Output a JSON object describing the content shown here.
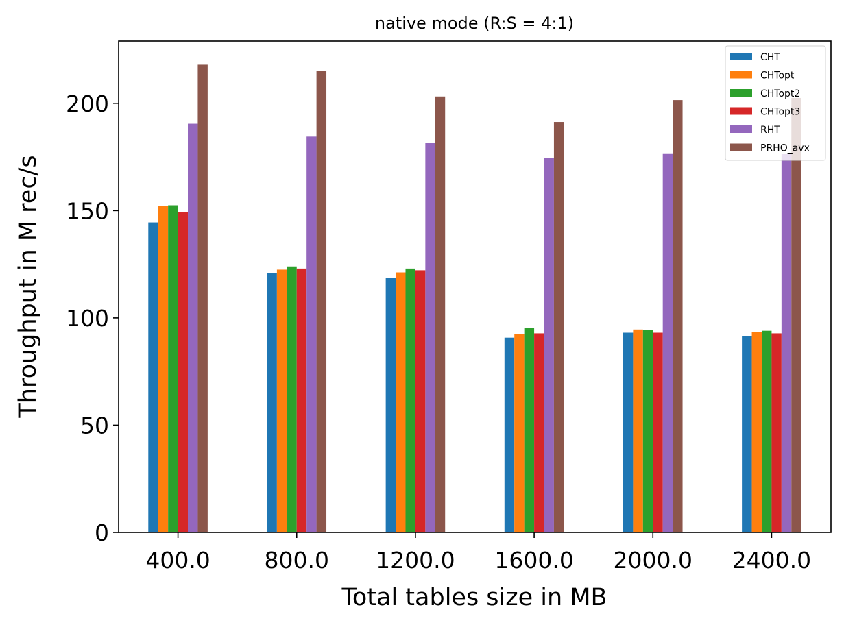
{
  "chart_data": {
    "type": "bar",
    "title": "native mode (R:S = 4:1)",
    "xlabel": "Total tables size in MB",
    "ylabel": "Throughput in M rec/s",
    "categories": [
      "400.0",
      "800.0",
      "1200.0",
      "1600.0",
      "2000.0",
      "2400.0"
    ],
    "ylim": [
      0,
      229
    ],
    "yticks": [
      0,
      50,
      100,
      150,
      200
    ],
    "grid": false,
    "legend_position": "top-right",
    "series": [
      {
        "name": "CHT",
        "color": "#1f77b4",
        "values": [
          144.5,
          120.8,
          118.6,
          90.8,
          93.1,
          91.6
        ]
      },
      {
        "name": "CHTopt",
        "color": "#ff7f0e",
        "values": [
          152.2,
          122.5,
          121.2,
          92.5,
          94.6,
          93.3
        ]
      },
      {
        "name": "CHTopt2",
        "color": "#2ca02c",
        "values": [
          152.5,
          124.0,
          123.0,
          95.2,
          94.3,
          94.0
        ]
      },
      {
        "name": "CHTopt3",
        "color": "#d62728",
        "values": [
          149.3,
          123.0,
          122.2,
          92.8,
          93.1,
          92.8
        ]
      },
      {
        "name": "RHT",
        "color": "#9467bd",
        "values": [
          190.5,
          184.5,
          181.6,
          174.6,
          176.7,
          176.5
        ]
      },
      {
        "name": "PRHO_avx",
        "color": "#8c564b",
        "values": [
          218.0,
          215.0,
          203.2,
          191.3,
          201.5,
          202.5
        ]
      }
    ]
  }
}
